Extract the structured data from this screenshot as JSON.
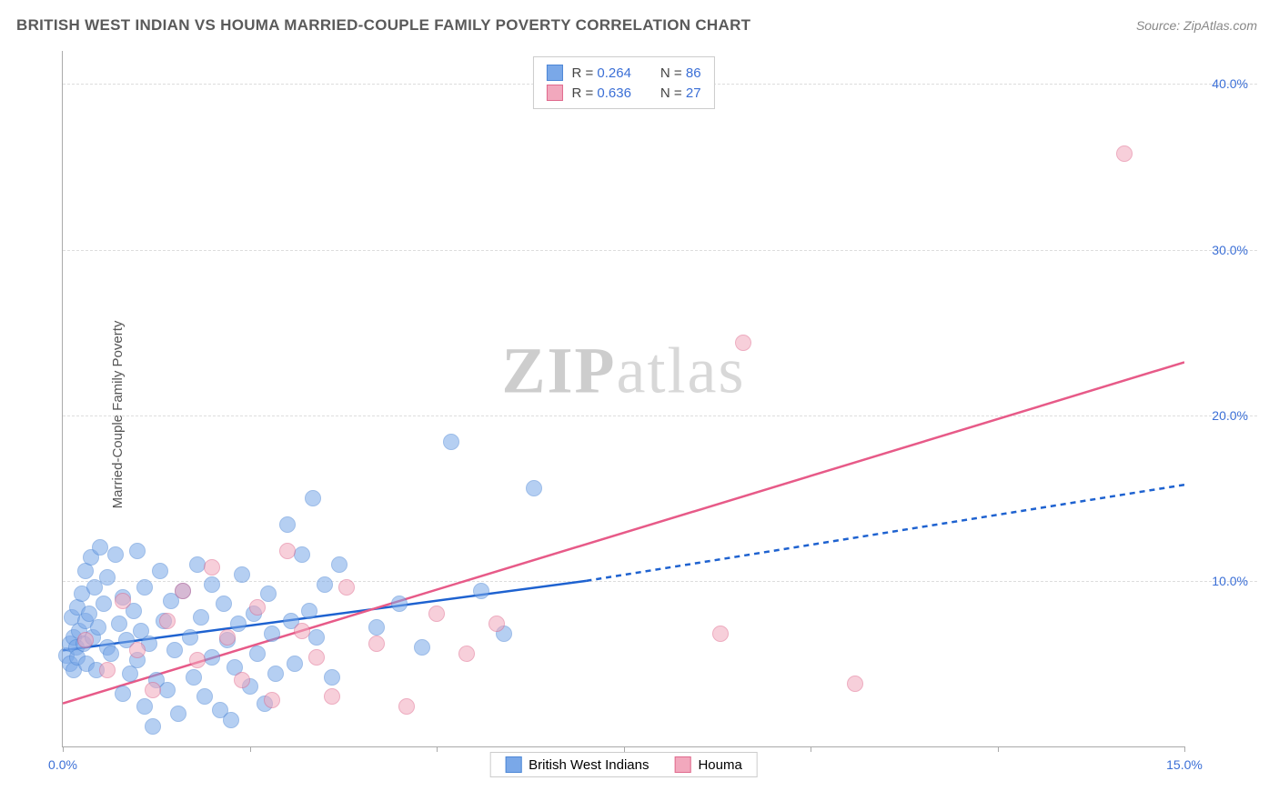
{
  "header": {
    "title": "BRITISH WEST INDIAN VS HOUMA MARRIED-COUPLE FAMILY POVERTY CORRELATION CHART",
    "source": "Source: ZipAtlas.com"
  },
  "watermark": {
    "bold": "ZIP",
    "rest": "atlas"
  },
  "chart": {
    "type": "scatter",
    "y_axis_title": "Married-Couple Family Poverty",
    "background_color": "#ffffff",
    "grid_color": "#dddddd",
    "axis_color": "#aaaaaa",
    "label_color": "#3b6fd6",
    "xlim": [
      0,
      15
    ],
    "ylim": [
      0,
      42
    ],
    "x_ticks": [
      0,
      2.5,
      5,
      7.5,
      10,
      12.5,
      15
    ],
    "x_tick_labels": {
      "0": "0.0%",
      "15": "15.0%"
    },
    "y_ticks": [
      10,
      20,
      30,
      40
    ],
    "y_tick_labels": {
      "10": "10.0%",
      "20": "20.0%",
      "30": "30.0%",
      "40": "40.0%"
    },
    "marker_radius": 9,
    "marker_opacity": 0.55,
    "series": [
      {
        "key": "bwi",
        "name": "British West Indians",
        "fill": "#7aa8e8",
        "stroke": "#4d87d6",
        "stats": {
          "R": "0.264",
          "N": "86"
        },
        "trend": {
          "color": "#1e62d0",
          "width": 2.5,
          "solid": {
            "x1": 0,
            "y1": 5.8,
            "x2": 7.0,
            "y2": 10.0
          },
          "dashed": {
            "x1": 7.0,
            "y1": 10.0,
            "x2": 15.0,
            "y2": 15.8
          }
        },
        "points": [
          [
            0.05,
            5.5
          ],
          [
            0.1,
            6.2
          ],
          [
            0.1,
            5.0
          ],
          [
            0.12,
            7.8
          ],
          [
            0.15,
            6.6
          ],
          [
            0.15,
            4.6
          ],
          [
            0.18,
            6.0
          ],
          [
            0.2,
            8.4
          ],
          [
            0.2,
            5.4
          ],
          [
            0.22,
            7.0
          ],
          [
            0.25,
            9.2
          ],
          [
            0.28,
            6.2
          ],
          [
            0.3,
            10.6
          ],
          [
            0.3,
            7.6
          ],
          [
            0.32,
            5.0
          ],
          [
            0.35,
            8.0
          ],
          [
            0.38,
            11.4
          ],
          [
            0.4,
            6.6
          ],
          [
            0.42,
            9.6
          ],
          [
            0.45,
            4.6
          ],
          [
            0.48,
            7.2
          ],
          [
            0.5,
            12.0
          ],
          [
            0.55,
            8.6
          ],
          [
            0.6,
            6.0
          ],
          [
            0.6,
            10.2
          ],
          [
            0.65,
            5.6
          ],
          [
            0.7,
            11.6
          ],
          [
            0.75,
            7.4
          ],
          [
            0.8,
            3.2
          ],
          [
            0.8,
            9.0
          ],
          [
            0.85,
            6.4
          ],
          [
            0.9,
            4.4
          ],
          [
            0.95,
            8.2
          ],
          [
            1.0,
            11.8
          ],
          [
            1.0,
            5.2
          ],
          [
            1.05,
            7.0
          ],
          [
            1.1,
            2.4
          ],
          [
            1.1,
            9.6
          ],
          [
            1.15,
            6.2
          ],
          [
            1.2,
            1.2
          ],
          [
            1.25,
            4.0
          ],
          [
            1.3,
            10.6
          ],
          [
            1.35,
            7.6
          ],
          [
            1.4,
            3.4
          ],
          [
            1.45,
            8.8
          ],
          [
            1.5,
            5.8
          ],
          [
            1.55,
            2.0
          ],
          [
            1.6,
            9.4
          ],
          [
            1.7,
            6.6
          ],
          [
            1.75,
            4.2
          ],
          [
            1.8,
            11.0
          ],
          [
            1.85,
            7.8
          ],
          [
            1.9,
            3.0
          ],
          [
            2.0,
            9.8
          ],
          [
            2.0,
            5.4
          ],
          [
            2.1,
            2.2
          ],
          [
            2.15,
            8.6
          ],
          [
            2.2,
            6.4
          ],
          [
            2.25,
            1.6
          ],
          [
            2.3,
            4.8
          ],
          [
            2.35,
            7.4
          ],
          [
            2.4,
            10.4
          ],
          [
            2.5,
            3.6
          ],
          [
            2.55,
            8.0
          ],
          [
            2.6,
            5.6
          ],
          [
            2.7,
            2.6
          ],
          [
            2.75,
            9.2
          ],
          [
            2.8,
            6.8
          ],
          [
            2.85,
            4.4
          ],
          [
            3.0,
            13.4
          ],
          [
            3.05,
            7.6
          ],
          [
            3.1,
            5.0
          ],
          [
            3.2,
            11.6
          ],
          [
            3.3,
            8.2
          ],
          [
            3.35,
            15.0
          ],
          [
            3.4,
            6.6
          ],
          [
            3.5,
            9.8
          ],
          [
            3.6,
            4.2
          ],
          [
            3.7,
            11.0
          ],
          [
            4.2,
            7.2
          ],
          [
            4.5,
            8.6
          ],
          [
            4.8,
            6.0
          ],
          [
            5.2,
            18.4
          ],
          [
            5.6,
            9.4
          ],
          [
            5.9,
            6.8
          ],
          [
            6.3,
            15.6
          ]
        ]
      },
      {
        "key": "houma",
        "name": "Houma",
        "fill": "#f2a8bd",
        "stroke": "#e06a8d",
        "stats": {
          "R": "0.636",
          "N": "27"
        },
        "trend": {
          "color": "#e75a88",
          "width": 2.5,
          "solid": {
            "x1": 0,
            "y1": 2.6,
            "x2": 15.0,
            "y2": 23.2
          }
        },
        "points": [
          [
            0.3,
            6.4
          ],
          [
            0.6,
            4.6
          ],
          [
            0.8,
            8.8
          ],
          [
            1.0,
            5.8
          ],
          [
            1.2,
            3.4
          ],
          [
            1.4,
            7.6
          ],
          [
            1.6,
            9.4
          ],
          [
            1.8,
            5.2
          ],
          [
            2.0,
            10.8
          ],
          [
            2.2,
            6.6
          ],
          [
            2.4,
            4.0
          ],
          [
            2.6,
            8.4
          ],
          [
            2.8,
            2.8
          ],
          [
            3.0,
            11.8
          ],
          [
            3.2,
            7.0
          ],
          [
            3.4,
            5.4
          ],
          [
            3.6,
            3.0
          ],
          [
            3.8,
            9.6
          ],
          [
            4.2,
            6.2
          ],
          [
            4.6,
            2.4
          ],
          [
            5.0,
            8.0
          ],
          [
            5.4,
            5.6
          ],
          [
            5.8,
            7.4
          ],
          [
            8.8,
            6.8
          ],
          [
            9.1,
            24.4
          ],
          [
            10.6,
            3.8
          ],
          [
            14.2,
            35.8
          ]
        ]
      }
    ],
    "legend_top": {
      "labels": {
        "r": "R =",
        "n": "N ="
      }
    },
    "legend_bottom": {
      "items": [
        {
          "series": "bwi",
          "label": "British West Indians"
        },
        {
          "series": "houma",
          "label": "Houma"
        }
      ]
    }
  }
}
